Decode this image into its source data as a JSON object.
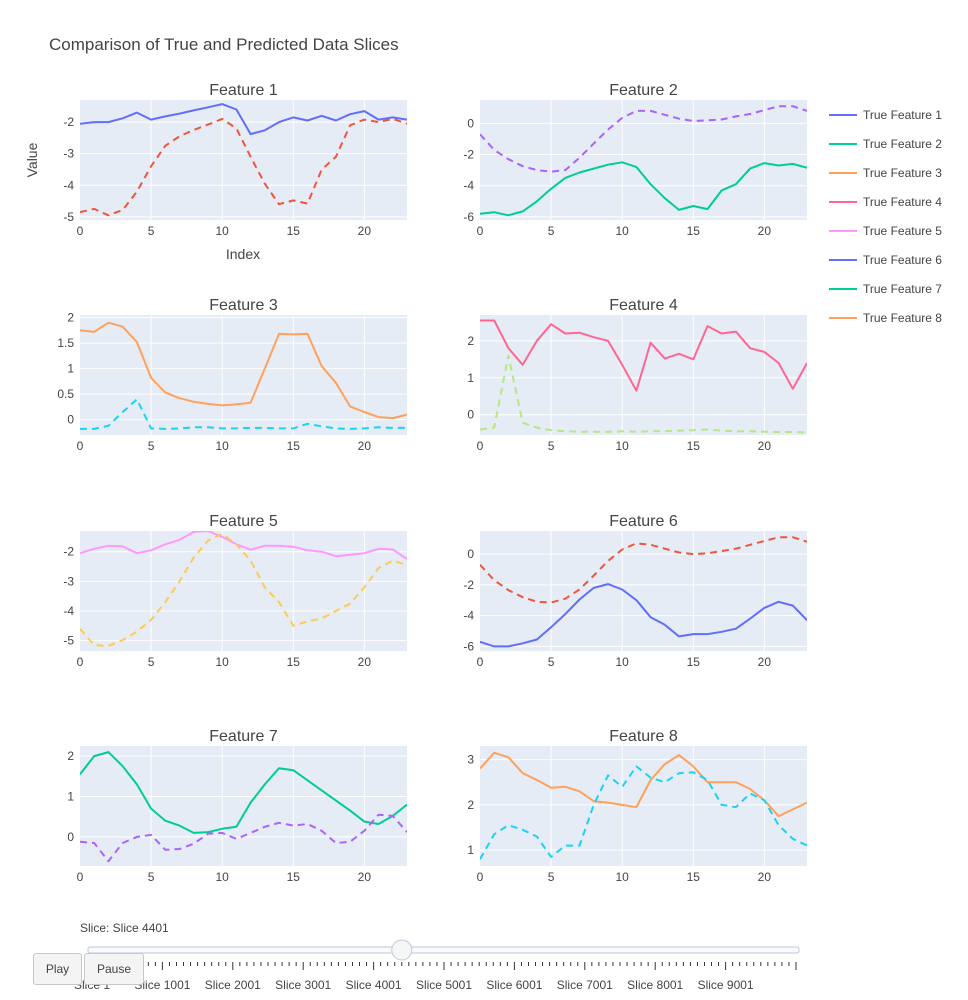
{
  "figure": {
    "title": "Comparison of True and Predicted Data Slices",
    "xaxis_title": "Index",
    "yaxis_title": "Value"
  },
  "colors": {
    "f1_true": "#636efa",
    "f1_pred": "#ef553b",
    "f2_true": "#00cc96",
    "f2_pred": "#ab63fa",
    "f3_true": "#ffa15a",
    "f3_pred": "#19d3f3",
    "f4_true": "#ff6692",
    "f4_pred": "#b6e880",
    "f5_true": "#ff97ff",
    "f5_pred": "#fecb52",
    "f6_true": "#636efa",
    "f6_pred": "#ef553b",
    "f7_true": "#00cc96",
    "f7_pred": "#ab63fa",
    "f8_true": "#ffa15a",
    "f8_pred": "#19d3f3"
  },
  "chart_data": [
    {
      "type": "line",
      "title": "Feature 1",
      "x": [
        0,
        1,
        2,
        3,
        4,
        5,
        6,
        7,
        8,
        9,
        10,
        11,
        12,
        13,
        14,
        15,
        16,
        17,
        18,
        19,
        20,
        21,
        22,
        23
      ],
      "xlim": [
        0,
        23
      ],
      "xticks": [
        0,
        5,
        10,
        15,
        20
      ],
      "ylim": [
        -5.1,
        -1.3
      ],
      "yticks": [
        -2,
        -3,
        -4,
        -5
      ],
      "series": [
        {
          "name": "True Feature 1",
          "style": "solid",
          "color": "#636efa",
          "values": [
            -2.05,
            -2.0,
            -2.0,
            -1.88,
            -1.7,
            -1.92,
            -1.82,
            -1.73,
            -1.63,
            -1.53,
            -1.43,
            -1.6,
            -2.38,
            -2.26,
            -2.0,
            -1.85,
            -1.95,
            -1.8,
            -1.95,
            -1.75,
            -1.65,
            -1.92,
            -1.85,
            -1.92
          ]
        },
        {
          "style": "dashed",
          "color": "#ef553b",
          "values": [
            -4.85,
            -4.75,
            -4.95,
            -4.78,
            -4.2,
            -3.4,
            -2.75,
            -2.45,
            -2.25,
            -2.08,
            -1.9,
            -2.2,
            -3.1,
            -3.95,
            -4.6,
            -4.48,
            -4.58,
            -3.5,
            -3.1,
            -2.1,
            -1.92,
            -2.0,
            -1.9,
            -2.05
          ]
        }
      ]
    },
    {
      "type": "line",
      "title": "Feature 2",
      "x": [
        0,
        1,
        2,
        3,
        4,
        5,
        6,
        7,
        8,
        9,
        10,
        11,
        12,
        13,
        14,
        15,
        16,
        17,
        18,
        19,
        20,
        21,
        22,
        23
      ],
      "xlim": [
        0,
        23
      ],
      "xticks": [
        0,
        5,
        10,
        15,
        20
      ],
      "ylim": [
        -6.2,
        1.5
      ],
      "yticks": [
        0,
        -2,
        -4,
        -6
      ],
      "series": [
        {
          "name": "True Feature 2",
          "style": "solid",
          "color": "#00cc96",
          "values": [
            -5.8,
            -5.7,
            -5.9,
            -5.65,
            -5.0,
            -4.2,
            -3.5,
            -3.15,
            -2.9,
            -2.65,
            -2.5,
            -2.8,
            -3.9,
            -4.8,
            -5.55,
            -5.3,
            -5.5,
            -4.3,
            -3.9,
            -2.9,
            -2.55,
            -2.7,
            -2.6,
            -2.85
          ]
        },
        {
          "style": "dashed",
          "color": "#ab63fa",
          "values": [
            -0.7,
            -1.7,
            -2.3,
            -2.75,
            -3.0,
            -3.1,
            -3.0,
            -2.2,
            -1.3,
            -0.4,
            0.35,
            0.8,
            0.8,
            0.55,
            0.3,
            0.15,
            0.2,
            0.25,
            0.45,
            0.6,
            0.85,
            1.1,
            1.1,
            0.8
          ]
        }
      ]
    },
    {
      "type": "line",
      "title": "Feature 3",
      "x": [
        0,
        1,
        2,
        3,
        4,
        5,
        6,
        7,
        8,
        9,
        10,
        11,
        12,
        13,
        14,
        15,
        16,
        17,
        18,
        19,
        20,
        21,
        22,
        23
      ],
      "xlim": [
        0,
        23
      ],
      "xticks": [
        0,
        5,
        10,
        15,
        20
      ],
      "ylim": [
        -0.3,
        2.05
      ],
      "yticks": [
        0,
        0.5,
        1,
        1.5,
        2
      ],
      "series": [
        {
          "name": "True Feature 3",
          "style": "solid",
          "color": "#ffa15a",
          "values": [
            1.75,
            1.72,
            1.9,
            1.82,
            1.52,
            0.82,
            0.53,
            0.42,
            0.35,
            0.31,
            0.28,
            0.3,
            0.33,
            1.0,
            1.68,
            1.67,
            1.68,
            1.05,
            0.72,
            0.26,
            0.15,
            0.05,
            0.03,
            0.1
          ]
        },
        {
          "style": "dashed",
          "color": "#19d3f3",
          "values": [
            -0.18,
            -0.18,
            -0.12,
            0.15,
            0.4,
            -0.17,
            -0.18,
            -0.17,
            -0.15,
            -0.15,
            -0.17,
            -0.17,
            -0.16,
            -0.16,
            -0.17,
            -0.17,
            -0.08,
            -0.13,
            -0.17,
            -0.18,
            -0.17,
            -0.15,
            -0.16,
            -0.16
          ]
        }
      ]
    },
    {
      "type": "line",
      "title": "Feature 4",
      "x": [
        0,
        1,
        2,
        3,
        4,
        5,
        6,
        7,
        8,
        9,
        10,
        11,
        12,
        13,
        14,
        15,
        16,
        17,
        18,
        19,
        20,
        21,
        22,
        23
      ],
      "xlim": [
        0,
        23
      ],
      "xticks": [
        0,
        5,
        10,
        15,
        20
      ],
      "ylim": [
        -0.55,
        2.7
      ],
      "yticks": [
        0,
        1,
        2
      ],
      "series": [
        {
          "name": "True Feature 4",
          "style": "solid",
          "color": "#ff6692",
          "values": [
            2.55,
            2.55,
            1.8,
            1.35,
            2.0,
            2.45,
            2.2,
            2.22,
            2.1,
            2.0,
            1.35,
            0.65,
            1.95,
            1.52,
            1.65,
            1.5,
            2.4,
            2.2,
            2.25,
            1.8,
            1.7,
            1.4,
            0.7,
            1.4
          ]
        },
        {
          "style": "dashed",
          "color": "#b6e880",
          "values": [
            -0.4,
            -0.35,
            1.6,
            -0.22,
            -0.35,
            -0.42,
            -0.45,
            -0.46,
            -0.46,
            -0.46,
            -0.45,
            -0.46,
            -0.45,
            -0.45,
            -0.43,
            -0.42,
            -0.4,
            -0.43,
            -0.45,
            -0.45,
            -0.46,
            -0.47,
            -0.47,
            -0.48
          ]
        }
      ]
    },
    {
      "type": "line",
      "title": "Feature 5",
      "x": [
        0,
        1,
        2,
        3,
        4,
        5,
        6,
        7,
        8,
        9,
        10,
        11,
        12,
        13,
        14,
        15,
        16,
        17,
        18,
        19,
        20,
        21,
        22,
        23
      ],
      "xlim": [
        0,
        23
      ],
      "xticks": [
        0,
        5,
        10,
        15,
        20
      ],
      "ylim": [
        -5.35,
        -1.3
      ],
      "yticks": [
        -2,
        -3,
        -4,
        -5
      ],
      "series": [
        {
          "name": "True Feature 5",
          "style": "solid",
          "color": "#ff97ff",
          "values": [
            -2.05,
            -1.9,
            -1.8,
            -1.82,
            -2.05,
            -1.95,
            -1.75,
            -1.6,
            -1.33,
            -1.3,
            -1.5,
            -1.75,
            -1.93,
            -1.8,
            -1.8,
            -1.83,
            -1.95,
            -2.0,
            -2.15,
            -2.1,
            -2.05,
            -1.9,
            -1.92,
            -2.25
          ]
        },
        {
          "style": "dashed",
          "color": "#fecb52",
          "values": [
            -4.6,
            -5.15,
            -5.18,
            -4.98,
            -4.7,
            -4.3,
            -3.7,
            -3.0,
            -2.2,
            -1.62,
            -1.4,
            -1.75,
            -2.3,
            -3.2,
            -3.7,
            -4.5,
            -4.35,
            -4.25,
            -4.0,
            -3.75,
            -3.2,
            -2.55,
            -2.3,
            -2.45
          ]
        }
      ]
    },
    {
      "type": "line",
      "title": "Feature 6",
      "x": [
        0,
        1,
        2,
        3,
        4,
        5,
        6,
        7,
        8,
        9,
        10,
        11,
        12,
        13,
        14,
        15,
        16,
        17,
        18,
        19,
        20,
        21,
        22,
        23
      ],
      "xlim": [
        0,
        23
      ],
      "xticks": [
        0,
        5,
        10,
        15,
        20
      ],
      "ylim": [
        -6.3,
        1.5
      ],
      "yticks": [
        0,
        -2,
        -4,
        -6
      ],
      "series": [
        {
          "name": "True Feature 6",
          "style": "solid",
          "color": "#636efa",
          "values": [
            -5.7,
            -6.0,
            -6.0,
            -5.8,
            -5.55,
            -4.75,
            -3.9,
            -2.95,
            -2.2,
            -1.95,
            -2.3,
            -3.0,
            -4.1,
            -4.6,
            -5.35,
            -5.2,
            -5.2,
            -5.05,
            -4.85,
            -4.2,
            -3.5,
            -3.1,
            -3.35,
            -4.3
          ]
        },
        {
          "style": "dashed",
          "color": "#ef553b",
          "values": [
            -0.7,
            -1.7,
            -2.35,
            -2.8,
            -3.1,
            -3.15,
            -2.9,
            -2.3,
            -1.4,
            -0.45,
            0.3,
            0.7,
            0.6,
            0.35,
            0.1,
            0.0,
            0.05,
            0.2,
            0.35,
            0.6,
            0.85,
            1.1,
            1.1,
            0.8
          ]
        }
      ]
    },
    {
      "type": "line",
      "title": "Feature 7",
      "x": [
        0,
        1,
        2,
        3,
        4,
        5,
        6,
        7,
        8,
        9,
        10,
        11,
        12,
        13,
        14,
        15,
        16,
        17,
        18,
        19,
        20,
        21,
        22,
        23
      ],
      "xlim": [
        0,
        23
      ],
      "xticks": [
        0,
        5,
        10,
        15,
        20
      ],
      "ylim": [
        -0.72,
        2.25
      ],
      "yticks": [
        0,
        1,
        2
      ],
      "series": [
        {
          "name": "True Feature 7",
          "style": "solid",
          "color": "#00cc96",
          "values": [
            1.55,
            2.0,
            2.1,
            1.75,
            1.3,
            0.7,
            0.4,
            0.28,
            0.1,
            0.12,
            0.2,
            0.25,
            0.85,
            1.3,
            1.7,
            1.65,
            1.4,
            1.15,
            0.9,
            0.65,
            0.38,
            0.32,
            0.52,
            0.8
          ]
        },
        {
          "style": "dashed",
          "color": "#ab63fa",
          "values": [
            -0.12,
            -0.15,
            -0.6,
            -0.15,
            0.0,
            0.05,
            -0.32,
            -0.3,
            -0.17,
            0.08,
            0.1,
            -0.05,
            0.1,
            0.25,
            0.35,
            0.28,
            0.32,
            0.15,
            -0.15,
            -0.12,
            0.15,
            0.55,
            0.52,
            0.12
          ]
        }
      ]
    },
    {
      "type": "line",
      "title": "Feature 8",
      "x": [
        0,
        1,
        2,
        3,
        4,
        5,
        6,
        7,
        8,
        9,
        10,
        11,
        12,
        13,
        14,
        15,
        16,
        17,
        18,
        19,
        20,
        21,
        22,
        23
      ],
      "xlim": [
        0,
        23
      ],
      "xticks": [
        0,
        5,
        10,
        15,
        20
      ],
      "ylim": [
        0.65,
        3.3
      ],
      "yticks": [
        1,
        2,
        3
      ],
      "series": [
        {
          "name": "True Feature 8",
          "style": "solid",
          "color": "#ffa15a",
          "values": [
            2.8,
            3.15,
            3.05,
            2.7,
            2.55,
            2.38,
            2.4,
            2.3,
            2.08,
            2.05,
            2.0,
            1.95,
            2.55,
            2.9,
            3.1,
            2.85,
            2.5,
            2.5,
            2.5,
            2.35,
            2.1,
            1.75,
            1.9,
            2.05
          ]
        },
        {
          "style": "dashed",
          "color": "#19d3f3",
          "values": [
            0.8,
            1.35,
            1.55,
            1.45,
            1.3,
            0.85,
            1.1,
            1.1,
            2.0,
            2.65,
            2.4,
            2.85,
            2.6,
            2.5,
            2.7,
            2.72,
            2.55,
            2.0,
            1.95,
            2.25,
            2.1,
            1.55,
            1.25,
            1.1
          ]
        }
      ]
    }
  ],
  "legend": {
    "items": [
      {
        "label": "True Feature 1",
        "color": "#636efa"
      },
      {
        "label": "True Feature 2",
        "color": "#00cc96"
      },
      {
        "label": "True Feature 3",
        "color": "#ffa15a"
      },
      {
        "label": "True Feature 4",
        "color": "#ff6692"
      },
      {
        "label": "True Feature 5",
        "color": "#ff97ff"
      },
      {
        "label": "True Feature 6",
        "color": "#636efa"
      },
      {
        "label": "True Feature 7",
        "color": "#00cc96"
      },
      {
        "label": "True Feature 8",
        "color": "#ffa15a"
      }
    ]
  },
  "slider": {
    "current_label": "Slice: Slice 4401",
    "current_fraction": 0.44,
    "tick_count": 101,
    "tick_labels": [
      "Slice 1",
      "Slice 1001",
      "Slice 2001",
      "Slice 3001",
      "Slice 4001",
      "Slice 5001",
      "Slice 6001",
      "Slice 7001",
      "Slice 8001",
      "Slice 9001"
    ]
  },
  "controls": {
    "play_label": "Play",
    "pause_label": "Pause"
  }
}
